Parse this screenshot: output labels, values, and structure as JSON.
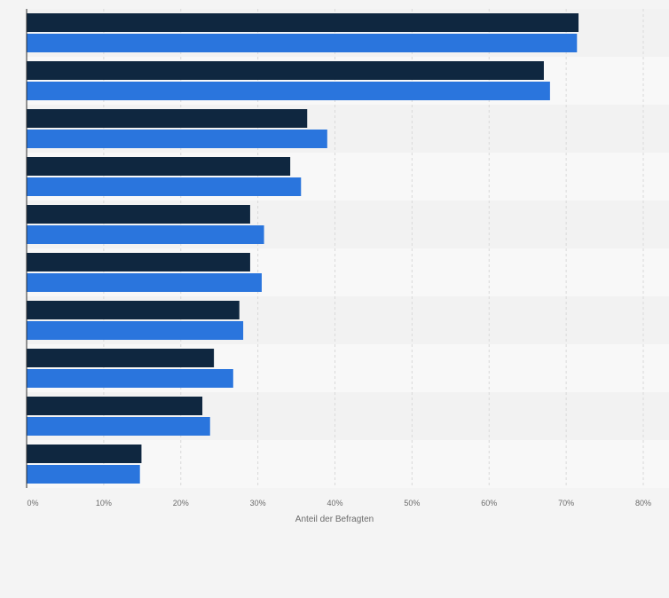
{
  "chart_data": {
    "type": "bar",
    "orientation": "horizontal",
    "categories": [
      "",
      "",
      "",
      "",
      "",
      "",
      "",
      "",
      "",
      ""
    ],
    "series": [
      {
        "color": "#0f2740",
        "values": [
          71.6,
          67.1,
          36.4,
          34.2,
          29.0,
          29.0,
          27.6,
          24.3,
          22.8,
          14.9
        ]
      },
      {
        "color": "#2a75dd",
        "values": [
          71.4,
          67.9,
          39.0,
          35.6,
          30.8,
          30.5,
          28.1,
          26.8,
          23.8,
          14.7
        ]
      }
    ],
    "xlabel": "Anteil der Befragten",
    "xlim": [
      0,
      80
    ],
    "xticks": [
      "0%",
      "10%",
      "20%",
      "30%",
      "40%",
      "50%",
      "60%",
      "70%",
      "80%"
    ],
    "grid": true,
    "legend": "none"
  }
}
